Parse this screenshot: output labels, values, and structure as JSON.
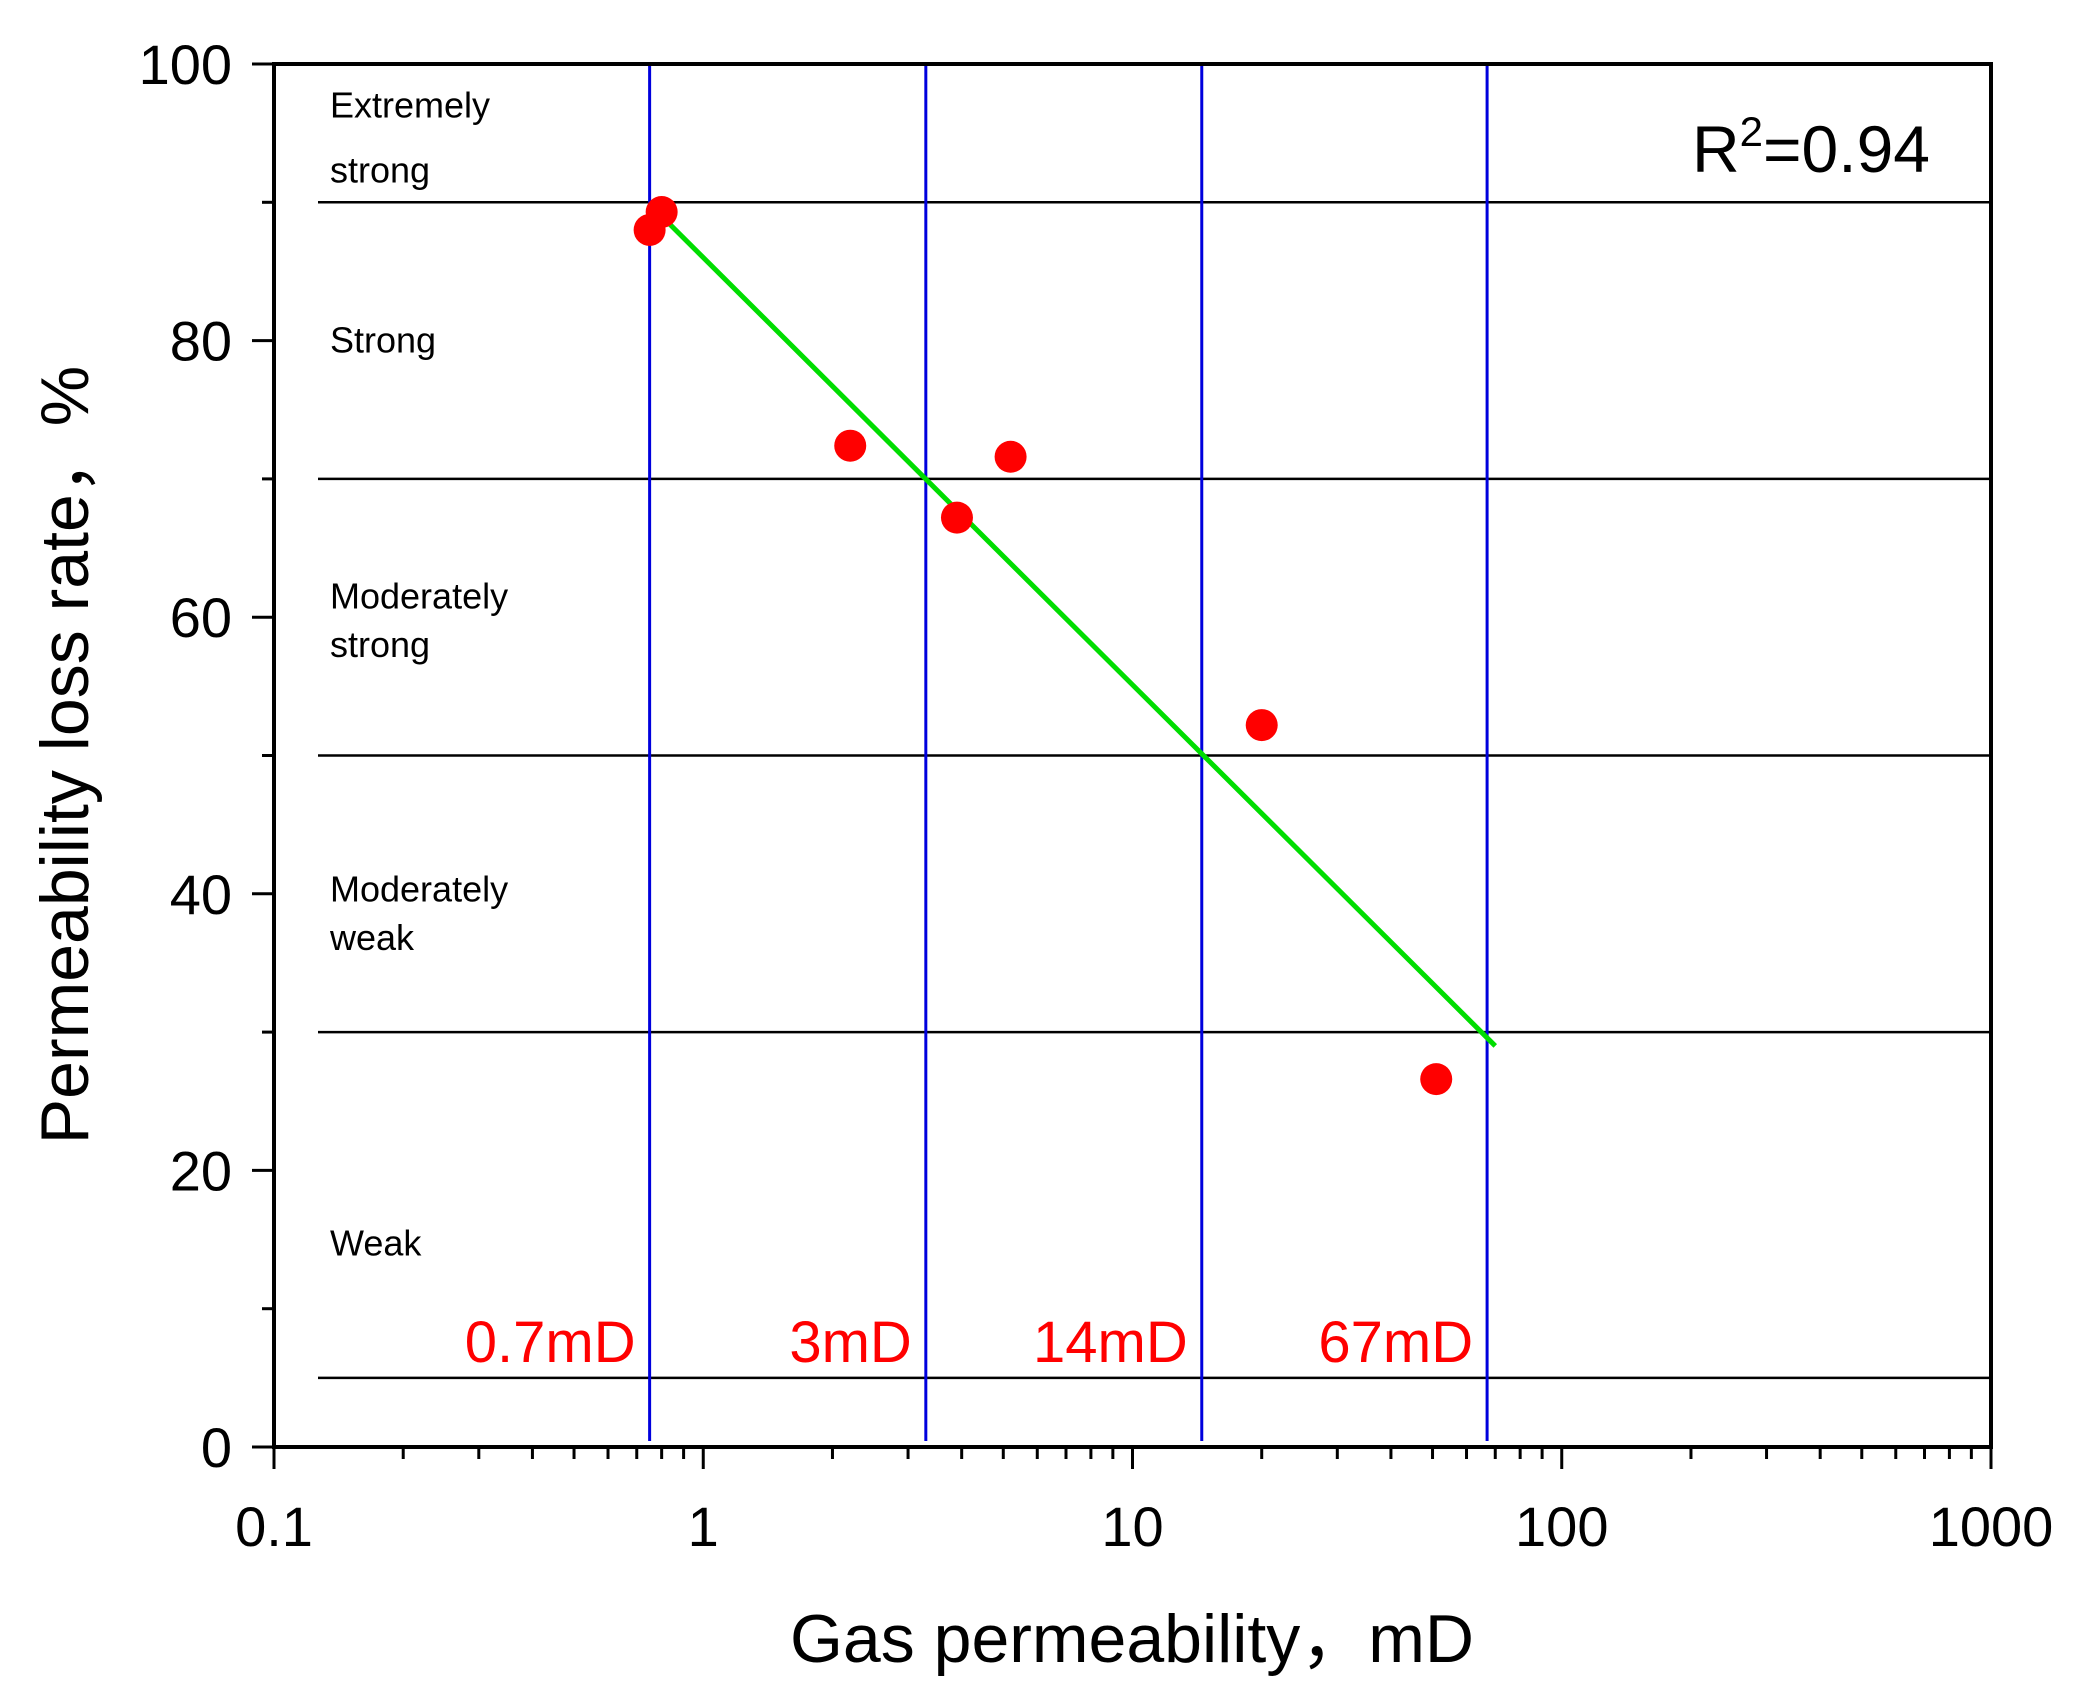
{
  "chart_data": {
    "type": "scatter",
    "x_scale": "log",
    "xlabel": "Gas permeability，mD",
    "ylabel": "Permeability loss rate，%",
    "xlim": [
      0.1,
      1000
    ],
    "ylim": [
      0,
      100
    ],
    "x_ticks": [
      {
        "value": 0.1,
        "label": "0.1"
      },
      {
        "value": 1,
        "label": "1"
      },
      {
        "value": 10,
        "label": "10"
      },
      {
        "value": 100,
        "label": "100"
      },
      {
        "value": 1000,
        "label": "1000"
      }
    ],
    "y_ticks": [
      {
        "value": 0,
        "label": "0"
      },
      {
        "value": 20,
        "label": "20"
      },
      {
        "value": 40,
        "label": "40"
      },
      {
        "value": 60,
        "label": "60"
      },
      {
        "value": 80,
        "label": "80"
      },
      {
        "value": 100,
        "label": "100"
      }
    ],
    "points": [
      {
        "x": 0.75,
        "y": 88.0
      },
      {
        "x": 0.8,
        "y": 89.3
      },
      {
        "x": 2.2,
        "y": 72.4
      },
      {
        "x": 3.9,
        "y": 67.2
      },
      {
        "x": 5.2,
        "y": 71.6
      },
      {
        "x": 20,
        "y": 52.2
      },
      {
        "x": 51,
        "y": 26.6
      }
    ],
    "fit_line": {
      "x0": 0.8,
      "y0": 89.0,
      "x1": 70,
      "y1": 29.0
    },
    "r2_base": "R",
    "r2_sup": "2",
    "r2_value": "=0.94",
    "zone_boundaries_y": [
      5,
      30,
      50,
      70,
      90
    ],
    "zone_labels": [
      {
        "lines": [
          "Extremely",
          "strong"
        ],
        "y": [
          97,
          92.3
        ]
      },
      {
        "lines": [
          "Strong"
        ],
        "y": [
          80
        ]
      },
      {
        "lines": [
          "Moderately",
          "strong"
        ],
        "y": [
          61.5,
          58
        ]
      },
      {
        "lines": [
          "Moderately",
          "weak"
        ],
        "y": [
          40.3,
          36.8
        ]
      },
      {
        "lines": [
          "Weak"
        ],
        "y": [
          14.7
        ]
      }
    ],
    "thresholds": [
      {
        "x": 0.75,
        "label": "0.7mD"
      },
      {
        "x": 3.3,
        "label": "3mD"
      },
      {
        "x": 14.5,
        "label": "14mD"
      },
      {
        "x": 67,
        "label": "67mD"
      }
    ],
    "colors": {
      "points": "#ff0000",
      "fit": "#00dd00",
      "vlines": "#0000dd",
      "hlines": "#000000",
      "threshold_text": "#ff0000"
    }
  }
}
